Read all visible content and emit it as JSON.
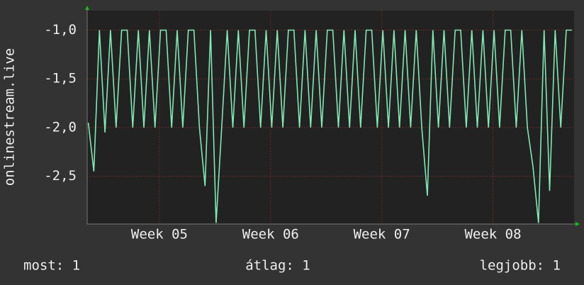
{
  "chart_data": {
    "type": "line",
    "y_label": "onlinestream.live",
    "x": [
      4.36,
      4.41,
      4.46,
      4.51,
      4.56,
      4.61,
      4.66,
      4.71,
      4.76,
      4.81,
      4.86,
      4.91,
      4.96,
      5.01,
      5.06,
      5.11,
      5.16,
      5.21,
      5.26,
      5.31,
      5.36,
      5.41,
      5.46,
      5.51,
      5.56,
      5.61,
      5.66,
      5.71,
      5.76,
      5.81,
      5.86,
      5.91,
      5.96,
      6.01,
      6.06,
      6.11,
      6.16,
      6.21,
      6.26,
      6.31,
      6.36,
      6.41,
      6.46,
      6.51,
      6.56,
      6.61,
      6.66,
      6.71,
      6.76,
      6.81,
      6.86,
      6.91,
      6.96,
      7.01,
      7.06,
      7.11,
      7.16,
      7.21,
      7.26,
      7.31,
      7.36,
      7.41,
      7.46,
      7.51,
      7.56,
      7.61,
      7.66,
      7.71,
      7.76,
      7.81,
      7.86,
      7.91,
      7.96,
      8.01,
      8.06,
      8.11,
      8.16,
      8.21,
      8.26,
      8.31,
      8.36,
      8.41,
      8.46,
      8.51,
      8.56,
      8.61,
      8.66,
      8.71
    ],
    "values": [
      -1.95,
      -2.45,
      -1.0,
      -2.05,
      -1.0,
      -2.0,
      -1.0,
      -1.0,
      -2.0,
      -1.0,
      -2.0,
      -1.0,
      -2.0,
      -1.0,
      -1.0,
      -2.0,
      -1.0,
      -2.0,
      -1.0,
      -1.0,
      -2.0,
      -2.6,
      -1.0,
      -2.98,
      -2.0,
      -1.0,
      -2.0,
      -1.0,
      -2.0,
      -1.0,
      -1.0,
      -2.0,
      -1.0,
      -2.0,
      -1.0,
      -2.0,
      -1.0,
      -1.0,
      -2.0,
      -1.0,
      -2.0,
      -1.0,
      -2.0,
      -1.0,
      -1.0,
      -2.0,
      -1.0,
      -2.0,
      -1.0,
      -2.0,
      -1.0,
      -1.0,
      -2.0,
      -1.0,
      -2.0,
      -1.0,
      -2.0,
      -1.0,
      -2.0,
      -1.0,
      -2.0,
      -2.7,
      -1.0,
      -2.0,
      -1.0,
      -2.0,
      -1.0,
      -1.0,
      -2.0,
      -1.0,
      -2.0,
      -1.0,
      -2.0,
      -1.0,
      -2.0,
      -1.0,
      -1.0,
      -2.0,
      -1.0,
      -2.0,
      -2.4,
      -2.98,
      -1.0,
      -2.65,
      -1.0,
      -2.0,
      -1.0,
      -1.0
    ],
    "color": "#7fe8b4",
    "xlim": [
      4.35,
      8.73
    ],
    "xticks": [
      {
        "value": 5,
        "label": "Week 05"
      },
      {
        "value": 6,
        "label": "Week 06"
      },
      {
        "value": 7,
        "label": "Week 07"
      },
      {
        "value": 8,
        "label": "Week 08"
      }
    ],
    "ylim": [
      -2.99,
      -0.8
    ],
    "yticks": [
      {
        "value": -1.0,
        "label": "-1,0"
      },
      {
        "value": -1.5,
        "label": "-1,5"
      },
      {
        "value": -2.0,
        "label": "-2,0"
      },
      {
        "value": -2.5,
        "label": "-2,5"
      }
    ],
    "grid": true,
    "footer": [
      "most: 1",
      "átlag: 1",
      "legjobb: 1"
    ]
  }
}
